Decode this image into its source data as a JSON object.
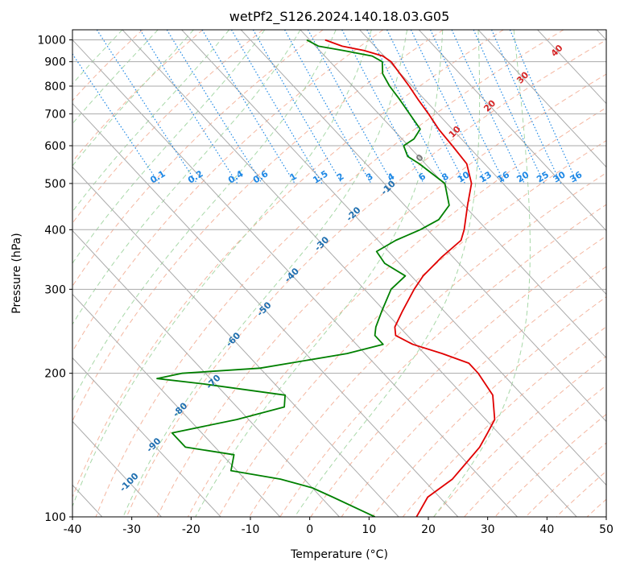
{
  "chart_data": {
    "type": "line",
    "title": "wetPf2_S126.2024.140.18.03.G05",
    "xlabel": "Temperature (°C)",
    "ylabel": "Pressure (hPa)",
    "xlim": [
      -40,
      50
    ],
    "ylim": [
      1050,
      100
    ],
    "y_scale": "log",
    "skew_deg_per_decade": 75,
    "grid": true,
    "x_ticks": [
      -40,
      -30,
      -20,
      -10,
      0,
      10,
      20,
      30,
      40,
      50
    ],
    "y_ticks": [
      100,
      200,
      300,
      400,
      500,
      600,
      700,
      800,
      900,
      1000
    ],
    "colors": {
      "temperature": "#e00000",
      "dewpoint": "#008000",
      "isotherm": "#aaaaaa",
      "dry_adiabat": "#f4b6a0",
      "moist_adiabat": "#a8d8a8",
      "mixing_ratio": "#1e88e5",
      "isotherm_label_neg": "#1f6fb0",
      "isotherm_label_pos": "#d62728",
      "isotherm_label_zero": "#777777",
      "mixing_label": "#1e88e5"
    },
    "series": [
      {
        "name": "Temperature",
        "points": [
          [
            1000,
            2.6
          ],
          [
            970,
            4.5
          ],
          [
            950,
            7.5
          ],
          [
            925,
            9.8
          ],
          [
            900,
            10.3
          ],
          [
            850,
            9.9
          ],
          [
            800,
            9.5
          ],
          [
            750,
            8.9
          ],
          [
            700,
            8.4
          ],
          [
            650,
            7.7
          ],
          [
            600,
            7.4
          ],
          [
            550,
            7.0
          ],
          [
            500,
            4.7
          ],
          [
            450,
            0.6
          ],
          [
            400,
            -3.8
          ],
          [
            380,
            -6.0
          ],
          [
            350,
            -12.0
          ],
          [
            320,
            -18.0
          ],
          [
            300,
            -21.6
          ],
          [
            270,
            -27.0
          ],
          [
            250,
            -30.8
          ],
          [
            240,
            -32.0
          ],
          [
            230,
            -30.5
          ],
          [
            220,
            -27.0
          ],
          [
            210,
            -24.0
          ],
          [
            200,
            -24.0
          ],
          [
            180,
            -25.0
          ],
          [
            160,
            -28.5
          ],
          [
            150,
            -31.8
          ],
          [
            140,
            -35.4
          ],
          [
            130,
            -40.0
          ],
          [
            120,
            -45.0
          ],
          [
            110,
            -52.0
          ],
          [
            100,
            -57.0
          ]
        ]
      },
      {
        "name": "Dewpoint",
        "points": [
          [
            1000,
            -0.5
          ],
          [
            970,
            0.5
          ],
          [
            950,
            4.0
          ],
          [
            925,
            8.0
          ],
          [
            900,
            8.8
          ],
          [
            850,
            7.0
          ],
          [
            800,
            6.2
          ],
          [
            750,
            5.8
          ],
          [
            700,
            5.2
          ],
          [
            650,
            4.6
          ],
          [
            620,
            2.0
          ],
          [
            600,
            -0.8
          ],
          [
            570,
            -1.8
          ],
          [
            550,
            -1.0
          ],
          [
            500,
            0.2
          ],
          [
            450,
            -2.5
          ],
          [
            420,
            -6.5
          ],
          [
            400,
            -11.2
          ],
          [
            380,
            -17.0
          ],
          [
            360,
            -22.0
          ],
          [
            340,
            -22.5
          ],
          [
            320,
            -21.0
          ],
          [
            300,
            -25.5
          ],
          [
            270,
            -30.5
          ],
          [
            250,
            -34.0
          ],
          [
            240,
            -35.5
          ],
          [
            230,
            -35.5
          ],
          [
            220,
            -43.0
          ],
          [
            205,
            -60.0
          ],
          [
            200,
            -74.0
          ],
          [
            195,
            -79.0
          ],
          [
            190,
            -72.0
          ],
          [
            180,
            -60.0
          ],
          [
            170,
            -62.0
          ],
          [
            160,
            -72.0
          ],
          [
            150,
            -85.0
          ],
          [
            140,
            -85.0
          ],
          [
            135,
            -78.0
          ],
          [
            125,
            -81.0
          ],
          [
            120,
            -74.0
          ],
          [
            115,
            -70.0
          ],
          [
            110,
            -68.0
          ],
          [
            100,
            -64.0
          ]
        ]
      }
    ],
    "isotherm_labels": [
      "-100",
      "-90",
      "-80",
      "-70",
      "-60",
      "-50",
      "-40",
      "-30",
      "-20",
      "-10",
      "0",
      "10",
      "20",
      "30",
      "40"
    ],
    "mixing_ratio_labels": [
      "0.1",
      "0.2",
      "0.4",
      "0.6",
      "1",
      "1.5",
      "2",
      "3",
      "4",
      "6",
      "8",
      "10",
      "13",
      "16",
      "20",
      "25",
      "30",
      "36"
    ]
  }
}
